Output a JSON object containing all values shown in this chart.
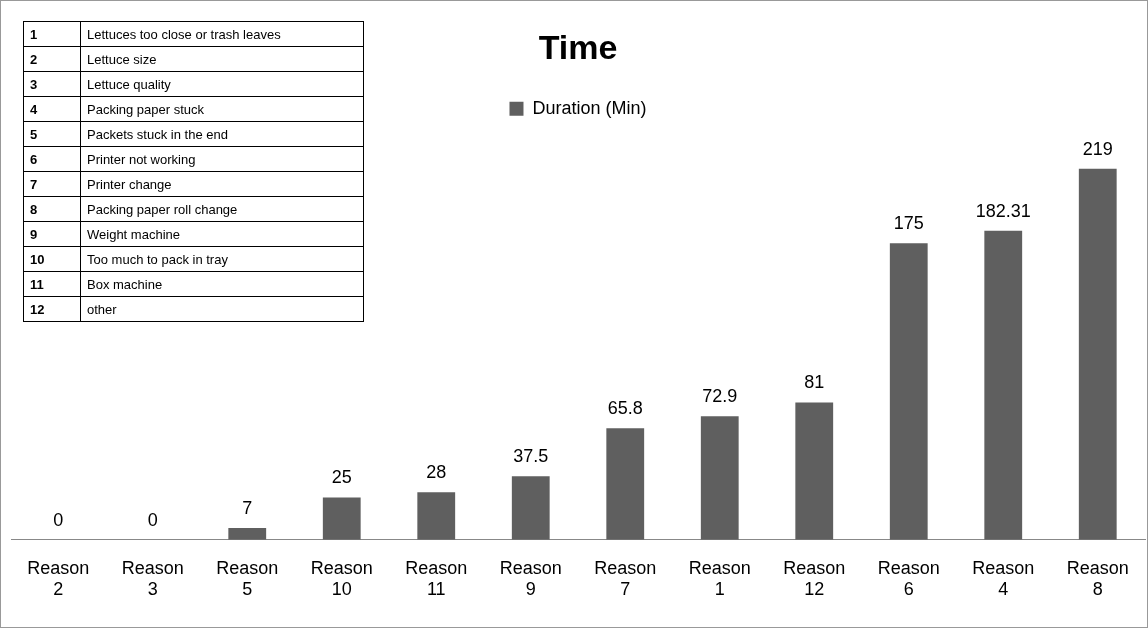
{
  "chart_data": {
    "type": "bar",
    "title": "Time",
    "categories": [
      "Reason 2",
      "Reason 3",
      "Reason 5",
      "Reason 10",
      "Reason 11",
      "Reason 9",
      "Reason 7",
      "Reason 1",
      "Reason 12",
      "Reason 6",
      "Reason 4",
      "Reason 8"
    ],
    "series": [
      {
        "name": "Duration (Min)",
        "color": "#5f5f5f",
        "values": [
          0,
          0,
          7,
          25,
          28,
          37.5,
          65.8,
          72.9,
          81,
          175,
          182.31,
          219
        ]
      }
    ],
    "data_labels": true,
    "legend": "top",
    "grid": false,
    "annotations": [
      "1 Lettuces too close or trash leaves",
      "2 Lettuce size",
      "3 Lettuce quality",
      "4 Packing  paper stuck",
      "5 Packets stuck in the end",
      "6 Printer not working",
      "7 Printer change",
      "8 Packing paper roll change",
      "9 Weight machine",
      "10 Too much to pack in tray",
      "11 Box machine",
      "12 other"
    ]
  }
}
